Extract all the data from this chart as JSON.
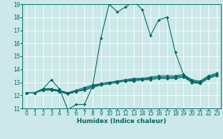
{
  "xlabel": "Humidex (Indice chaleur)",
  "background_color": "#cce8e8",
  "grid_color": "#ffffff",
  "line_color": "#006666",
  "xlim": [
    -0.5,
    23.5
  ],
  "ylim": [
    11,
    19
  ],
  "xticks": [
    0,
    1,
    2,
    3,
    4,
    5,
    6,
    7,
    8,
    9,
    10,
    11,
    12,
    13,
    14,
    15,
    16,
    17,
    18,
    19,
    20,
    21,
    22,
    23
  ],
  "yticks": [
    11,
    12,
    13,
    14,
    15,
    16,
    17,
    18,
    19
  ],
  "lines": [
    {
      "x": [
        0,
        1,
        2,
        3,
        4,
        5,
        6,
        7,
        8,
        9,
        10,
        11,
        12,
        13,
        14,
        15,
        16,
        17,
        18,
        19,
        20,
        21,
        22,
        23
      ],
      "y": [
        12.2,
        12.2,
        12.5,
        13.2,
        12.5,
        10.9,
        11.3,
        11.3,
        12.7,
        16.4,
        19.0,
        18.4,
        18.8,
        19.2,
        18.6,
        16.6,
        17.8,
        18.0,
        15.3,
        13.6,
        13.1,
        13.0,
        13.4,
        13.6
      ]
    },
    {
      "x": [
        0,
        1,
        2,
        3,
        4,
        5,
        6,
        7,
        8,
        9,
        10,
        11,
        12,
        13,
        14,
        15,
        16,
        17,
        18,
        19,
        20,
        21,
        22,
        23
      ],
      "y": [
        12.2,
        12.2,
        12.5,
        12.5,
        12.4,
        12.2,
        12.4,
        12.6,
        12.8,
        12.9,
        13.0,
        13.1,
        13.2,
        13.2,
        13.3,
        13.3,
        13.4,
        13.4,
        13.4,
        13.5,
        13.1,
        13.0,
        13.4,
        13.6
      ]
    },
    {
      "x": [
        0,
        1,
        2,
        3,
        4,
        5,
        6,
        7,
        8,
        9,
        10,
        11,
        12,
        13,
        14,
        15,
        16,
        17,
        18,
        19,
        20,
        21,
        22,
        23
      ],
      "y": [
        12.2,
        12.2,
        12.5,
        12.5,
        12.3,
        12.1,
        12.3,
        12.5,
        12.7,
        12.9,
        13.0,
        13.1,
        13.2,
        13.3,
        13.3,
        13.4,
        13.5,
        13.5,
        13.5,
        13.6,
        13.2,
        13.1,
        13.5,
        13.7
      ]
    },
    {
      "x": [
        0,
        1,
        2,
        3,
        4,
        5,
        6,
        7,
        8,
        9,
        10,
        11,
        12,
        13,
        14,
        15,
        16,
        17,
        18,
        19,
        20,
        21,
        22,
        23
      ],
      "y": [
        12.2,
        12.2,
        12.4,
        12.5,
        12.3,
        12.1,
        12.3,
        12.4,
        12.6,
        12.8,
        12.9,
        13.0,
        13.1,
        13.2,
        13.2,
        13.3,
        13.4,
        13.3,
        13.4,
        13.5,
        13.0,
        13.0,
        13.4,
        13.6
      ]
    },
    {
      "x": [
        0,
        1,
        2,
        3,
        4,
        5,
        6,
        7,
        8,
        9,
        10,
        11,
        12,
        13,
        14,
        15,
        16,
        17,
        18,
        19,
        20,
        21,
        22,
        23
      ],
      "y": [
        12.2,
        12.2,
        12.4,
        12.4,
        12.3,
        12.2,
        12.3,
        12.5,
        12.7,
        12.8,
        12.9,
        13.0,
        13.1,
        13.1,
        13.2,
        13.2,
        13.3,
        13.3,
        13.3,
        13.4,
        13.0,
        12.9,
        13.3,
        13.5
      ]
    }
  ],
  "marker": "D",
  "markersize": 2.0,
  "linewidth": 0.8,
  "xlabel_fontsize": 6.5,
  "tick_fontsize": 5.5
}
